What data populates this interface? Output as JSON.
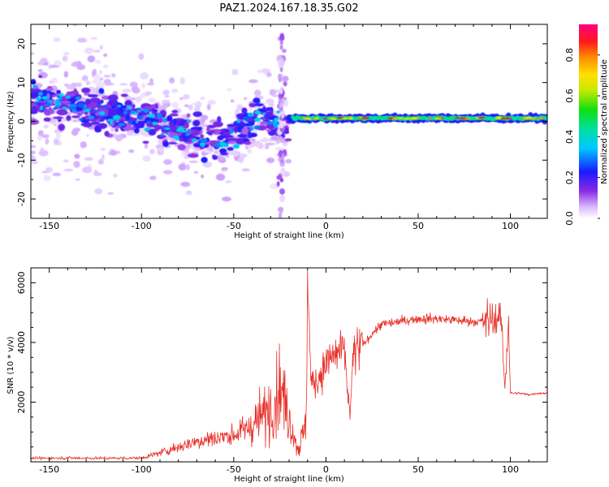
{
  "title": "PAZ1.2024.167.18.35.G02",
  "chart_data": [
    {
      "type": "heatmap",
      "name": "spectrogram",
      "xlabel": "Height of straight line (km)",
      "ylabel": "Frequency (Hz)",
      "xlim": [
        -160,
        120
      ],
      "ylim": [
        -25,
        25
      ],
      "xticks": [
        -150,
        -100,
        -50,
        0,
        50,
        100
      ],
      "yticks": [
        -20,
        -10,
        0,
        10,
        20
      ],
      "colorbar": {
        "label": "Normalized spectral amplitude",
        "range": [
          0,
          0.95
        ],
        "ticks": [
          0.0,
          0.2,
          0.4,
          0.6,
          0.8
        ],
        "tick_labels": [
          "0.0",
          "0.2",
          "0.4",
          "0.6",
          "0.8"
        ],
        "colormap": "rainbow (white-violet-blue-cyan-green-yellow-orange-red-magenta)"
      },
      "features": {
        "line_freq_hz": 0.8,
        "line_extent_km": [
          -20,
          120
        ],
        "scattered_extent_km": [
          -160,
          -20
        ],
        "scattered_freq_trend": [
          {
            "x": -155,
            "y": 6
          },
          {
            "x": -130,
            "y": 3
          },
          {
            "x": -100,
            "y": 1
          },
          {
            "x": -75,
            "y": -3
          },
          {
            "x": -55,
            "y": -5
          },
          {
            "x": -35,
            "y": 2
          },
          {
            "x": -25,
            "y": -2
          }
        ]
      }
    },
    {
      "type": "line",
      "name": "snr",
      "xlabel": "Height of straight line (km)",
      "ylabel": "SNR (10 * v/v)",
      "xlim": [
        -160,
        120
      ],
      "ylim": [
        0,
        6500
      ],
      "xticks": [
        -150,
        -100,
        -50,
        0,
        50,
        100
      ],
      "yticks": [
        2000,
        4000,
        6000
      ],
      "color": "#e8302a",
      "series": {
        "x": [
          -160,
          -140,
          -120,
          -100,
          -90,
          -80,
          -70,
          -60,
          -50,
          -40,
          -30,
          -25,
          -20,
          -15,
          -11,
          -10,
          -8,
          -5,
          0,
          5,
          10,
          13,
          15,
          20,
          25,
          30,
          40,
          50,
          60,
          70,
          80,
          85,
          90,
          95,
          97,
          99,
          100,
          105,
          110,
          115,
          120
        ],
        "y": [
          120,
          130,
          120,
          130,
          300,
          500,
          700,
          800,
          900,
          1200,
          1800,
          2600,
          1500,
          400,
          1200,
          6200,
          2600,
          2700,
          3300,
          3600,
          3700,
          1500,
          3700,
          3900,
          4300,
          4600,
          4700,
          4800,
          4800,
          4750,
          4700,
          4700,
          4750,
          4800,
          2500,
          4800,
          2300,
          2300,
          2250,
          2300,
          2300
        ]
      }
    }
  ]
}
